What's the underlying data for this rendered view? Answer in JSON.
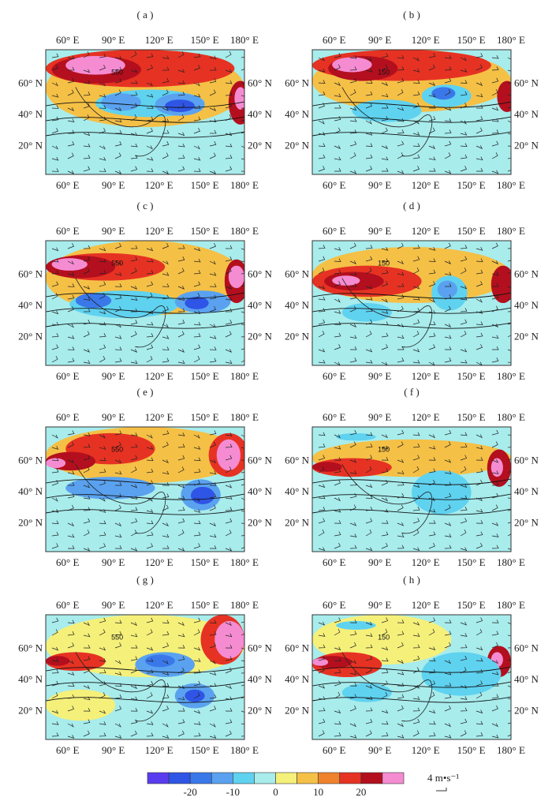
{
  "figure": {
    "panels": [
      {
        "label": "( a )",
        "contour_label": "550"
      },
      {
        "label": "( b )",
        "contour_label": "150"
      },
      {
        "label": "( c )",
        "contour_label": "550"
      },
      {
        "label": "( d )",
        "contour_label": "150"
      },
      {
        "label": "( e )",
        "contour_label": "550"
      },
      {
        "label": "( f )",
        "contour_label": "150"
      },
      {
        "label": "( g )",
        "contour_label": "550"
      },
      {
        "label": "( h )",
        "contour_label": "150"
      }
    ],
    "lon_ticks": [
      "60° E",
      "90° E",
      "120° E",
      "150° E",
      "180° E"
    ],
    "lat_ticks": [
      "60° N",
      "40° N",
      "20° N"
    ],
    "colorbar": {
      "colors": [
        "#5a3cf0",
        "#2f55e6",
        "#3a78ea",
        "#5aa2f0",
        "#5fd2f0",
        "#a8ecec",
        "#f5f07a",
        "#f5c046",
        "#f0822d",
        "#e63223",
        "#b40f1e",
        "#f58cd2"
      ],
      "tick_labels": [
        "-20",
        "-10",
        "0",
        "10",
        "20"
      ],
      "tick_bounds": [
        2,
        4,
        6,
        8,
        10
      ]
    },
    "wind_legend": {
      "text": "4 m•s⁻¹"
    }
  }
}
